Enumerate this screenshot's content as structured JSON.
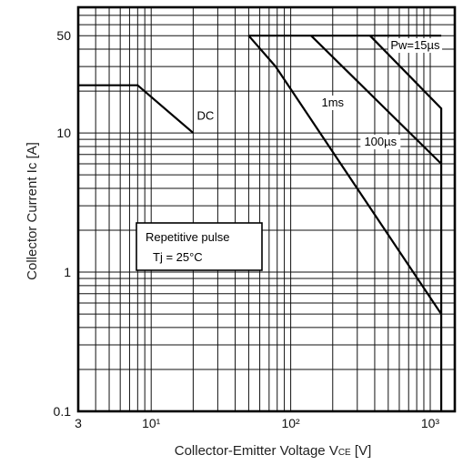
{
  "chart_data": {
    "type": "line",
    "xlabel": "Collector-Emitter Voltage V",
    "xlabel_sub": "CE",
    "xlabel_unit": " [V]",
    "ylabel": "Collector Current Ic [A]",
    "x_scale": "log",
    "y_scale": "log",
    "xlim": [
      3,
      1500
    ],
    "ylim": [
      0.1,
      80
    ],
    "grid": true,
    "x_tick_values": [
      3,
      10,
      100,
      1000
    ],
    "x_tick_labels": [
      "3",
      "10¹",
      "10²",
      "10³"
    ],
    "y_tick_values": [
      0.1,
      1,
      10,
      50
    ],
    "y_tick_labels": [
      "0.1",
      "1",
      "10",
      "50"
    ],
    "series": [
      {
        "name": "DC",
        "x": [
          3,
          8,
          20
        ],
        "y": [
          22,
          22,
          10
        ]
      },
      {
        "name": "1ms",
        "x": [
          50,
          78,
          1200
        ],
        "y": [
          50,
          30,
          0.5
        ]
      },
      {
        "name": "100µs",
        "x": [
          140,
          1200
        ],
        "y": [
          50,
          6
        ]
      },
      {
        "name": "Pw=15µs",
        "x": [
          370,
          1200,
          1200
        ],
        "y": [
          50,
          15,
          0.1
        ]
      }
    ],
    "max_current": {
      "x": [
        50,
        1200
      ],
      "y": [
        50,
        50
      ]
    },
    "annotations": [
      {
        "text": "DC"
      },
      {
        "text": "1ms"
      },
      {
        "text": "100µs"
      },
      {
        "text": "Pw=15µs"
      }
    ],
    "condition_box": {
      "line1": "Repetitive pulse",
      "line2": "Tj = 25°C"
    }
  }
}
